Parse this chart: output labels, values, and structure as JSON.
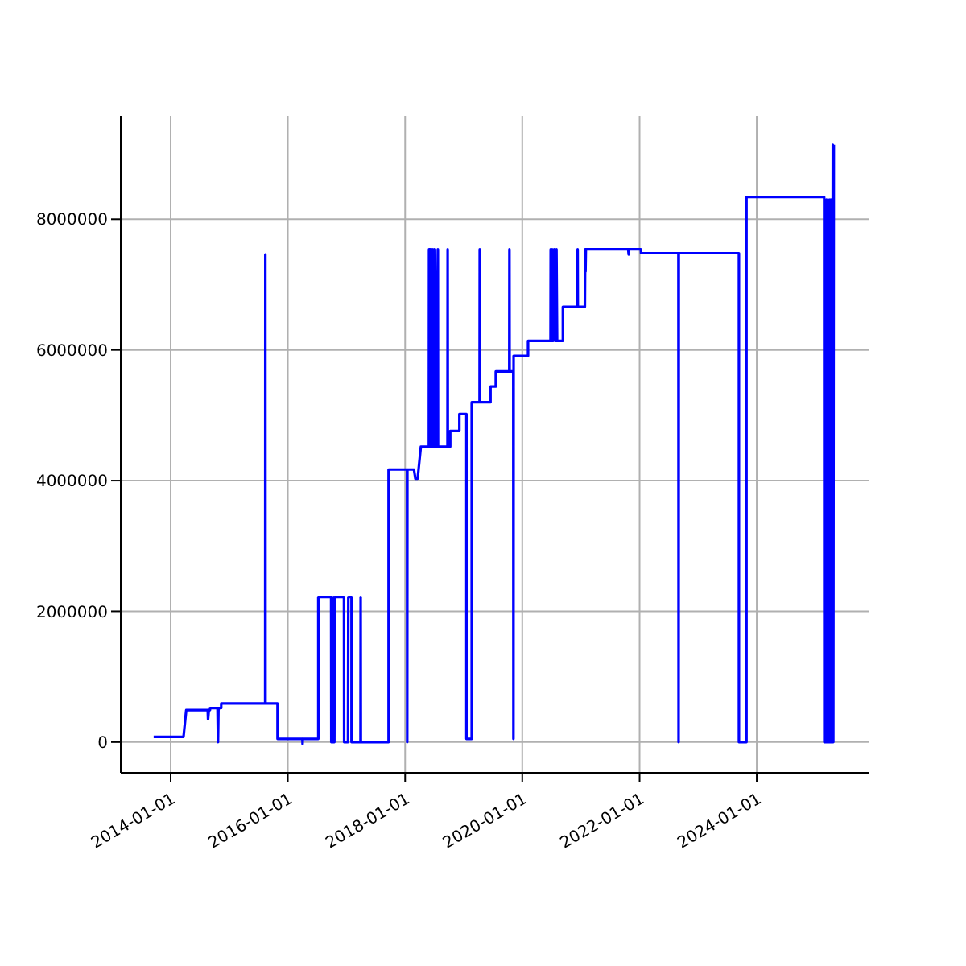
{
  "chart_data": {
    "type": "line",
    "color": "#0000ff",
    "marker": "none",
    "line_style": "solid",
    "grid": true,
    "legend": false,
    "xlim": [
      "2013-02-24",
      "2025-12-03"
    ],
    "xticks": [
      "2014-01-01",
      "2016-01-01",
      "2018-01-01",
      "2020-01-01",
      "2022-01-01",
      "2024-01-01"
    ],
    "ylim": [
      -470000,
      9580000
    ],
    "yticks": [
      0,
      2000000,
      4000000,
      6000000,
      8000000
    ],
    "x": [
      "2013-09-17",
      "2014-03-22",
      "2014-04-08",
      "2014-08-20",
      "2014-08-22",
      "2014-08-27",
      "2014-09-03",
      "2014-09-03",
      "2014-10-20",
      "2014-10-23",
      "2014-10-26",
      "2014-11-12",
      "2014-11-12",
      "2015-08-13",
      "2015-08-14",
      "2015-08-15",
      "2015-10-29",
      "2015-10-29",
      "2016-04-01",
      "2016-04-02",
      "2016-04-03",
      "2016-07-09",
      "2016-07-09",
      "2016-09-27",
      "2016-09-28",
      "2016-09-30",
      "2016-10-10",
      "2016-10-12",
      "2016-10-17",
      "2016-10-19",
      "2016-12-16",
      "2016-12-17",
      "2017-01-10",
      "2017-01-12",
      "2017-02-01",
      "2017-02-01",
      "2017-03-29",
      "2017-03-30",
      "2017-03-31",
      "2017-09-20",
      "2017-09-20",
      "2018-01-13",
      "2018-01-14",
      "2018-01-15",
      "2018-02-25",
      "2018-03-06",
      "2018-03-20",
      "2018-04-09",
      "2018-05-29",
      "2018-05-30",
      "2018-06-02",
      "2018-06-05",
      "2018-06-09",
      "2018-06-12",
      "2018-06-16",
      "2018-06-20",
      "2018-06-25",
      "2018-07-01",
      "2018-07-10",
      "2018-07-24",
      "2018-07-25",
      "2018-09-22",
      "2018-09-23",
      "2018-09-24",
      "2018-10-09",
      "2018-10-09",
      "2018-12-05",
      "2018-12-05",
      "2019-01-18",
      "2019-01-18",
      "2019-02-20",
      "2019-02-20",
      "2019-04-10",
      "2019-04-11",
      "2019-04-12",
      "2019-06-17",
      "2019-06-17",
      "2019-07-20",
      "2019-07-20",
      "2019-10-12",
      "2019-10-13",
      "2019-10-14",
      "2019-11-06",
      "2019-11-07",
      "2019-11-08",
      "2020-02-06",
      "2020-02-06",
      "2020-06-25",
      "2020-06-26",
      "2020-07-01",
      "2020-07-05",
      "2020-07-12",
      "2020-07-18",
      "2020-07-25",
      "2020-08-01",
      "2020-08-05",
      "2020-09-10",
      "2020-09-10",
      "2020-12-10",
      "2020-12-11",
      "2020-12-12",
      "2021-01-25",
      "2021-01-27",
      "2021-01-29",
      "2021-01-31",
      "2021-10-22",
      "2021-10-25",
      "2021-10-28",
      "2022-01-09",
      "2022-01-10",
      "2022-08-31",
      "2022-09-01",
      "2022-09-02",
      "2023-09-12",
      "2023-09-12",
      "2023-10-29",
      "2023-10-29",
      "2025-02-24",
      "2025-02-25",
      "2025-03-01",
      "2025-03-05",
      "2025-03-10",
      "2025-03-14",
      "2025-03-20",
      "2025-03-25",
      "2025-04-01",
      "2025-04-05",
      "2025-04-10",
      "2025-04-15",
      "2025-04-19",
      "2025-04-22",
      "2025-04-25"
    ],
    "values": [
      80000,
      80000,
      490000,
      490000,
      350000,
      490000,
      490000,
      520000,
      520000,
      0,
      520000,
      520000,
      590000,
      590000,
      7460000,
      590000,
      590000,
      50000,
      50000,
      -30000,
      50000,
      50000,
      2220000,
      2220000,
      0,
      2220000,
      0,
      2220000,
      0,
      2220000,
      2220000,
      0,
      0,
      2220000,
      2220000,
      0,
      0,
      2220000,
      0,
      0,
      4170000,
      4170000,
      0,
      4170000,
      4170000,
      4030000,
      4030000,
      4520000,
      4520000,
      7540000,
      4520000,
      7540000,
      4520000,
      7540000,
      4520000,
      7540000,
      4520000,
      7540000,
      4520000,
      7540000,
      4520000,
      4520000,
      7540000,
      4520000,
      4520000,
      4760000,
      4760000,
      5020000,
      5020000,
      50000,
      50000,
      5200000,
      5200000,
      7540000,
      5200000,
      5200000,
      5440000,
      5440000,
      5670000,
      5670000,
      7540000,
      5670000,
      5670000,
      50000,
      5910000,
      5910000,
      6140000,
      6140000,
      7540000,
      6140000,
      7540000,
      6140000,
      7540000,
      6140000,
      7540000,
      6140000,
      6140000,
      6660000,
      6660000,
      7540000,
      6660000,
      6660000,
      7540000,
      7200000,
      7540000,
      7540000,
      7460000,
      7540000,
      7540000,
      7480000,
      7480000,
      0,
      7480000,
      7480000,
      0,
      0,
      8340000,
      8340000,
      0,
      8300000,
      0,
      8300000,
      0,
      8300000,
      0,
      8300000,
      0,
      8300000,
      0,
      9140000,
      0,
      9140000
    ]
  }
}
